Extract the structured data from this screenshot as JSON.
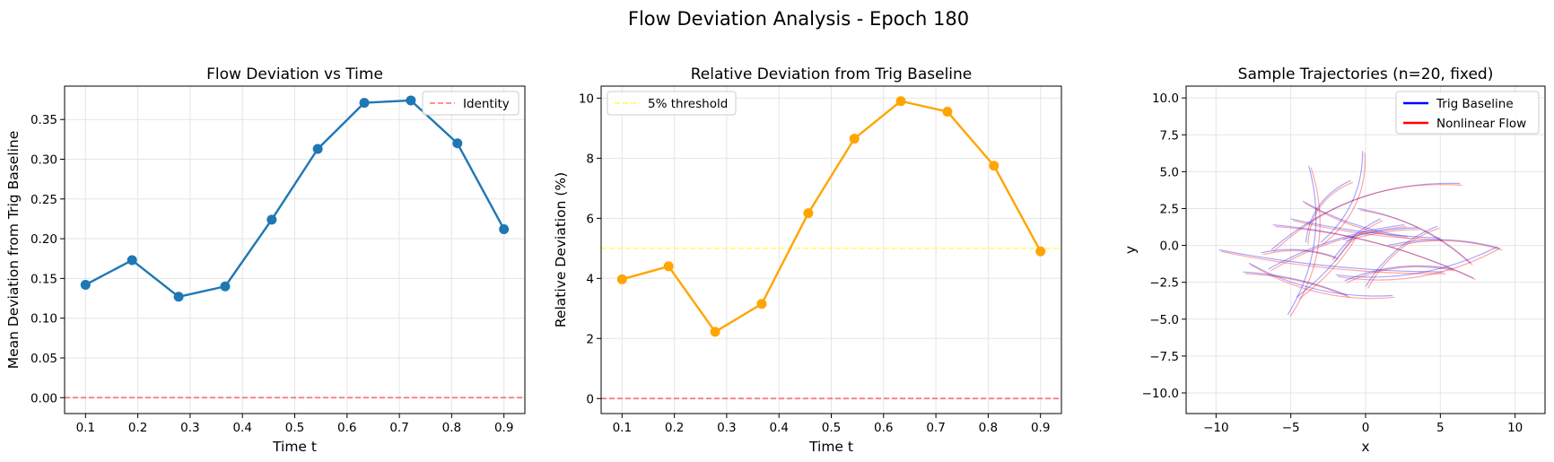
{
  "figure": {
    "suptitle": "Flow Deviation Analysis - Epoch 180"
  },
  "colors": {
    "blue": "#1f77b4",
    "orange": "#ffa500",
    "red": "#ff0000",
    "yellow": "#ffff00",
    "traj_blue": "#0000ff",
    "traj_red": "#ff0000",
    "grid": "#e5e5e5"
  },
  "chart_data": [
    {
      "type": "line",
      "title": "Flow Deviation vs Time",
      "xlabel": "Time t",
      "ylabel": "Mean Deviation from Trig Baseline",
      "xlim": [
        0.06,
        0.94
      ],
      "ylim": [
        -0.02,
        0.392
      ],
      "xticks": [
        0.1,
        0.2,
        0.3,
        0.4,
        0.5,
        0.6,
        0.7,
        0.8,
        0.9
      ],
      "yticks": [
        0.0,
        0.05,
        0.1,
        0.15,
        0.2,
        0.25,
        0.3,
        0.35
      ],
      "ytick_labels": [
        "0.00",
        "0.05",
        "0.10",
        "0.15",
        "0.20",
        "0.25",
        "0.30",
        "0.35"
      ],
      "grid": true,
      "legend_position": "upper right",
      "x": [
        0.1,
        0.189,
        0.278,
        0.367,
        0.456,
        0.544,
        0.633,
        0.722,
        0.811,
        0.9
      ],
      "series": [
        {
          "values": [
            0.142,
            0.173,
            0.127,
            0.14,
            0.224,
            0.313,
            0.371,
            0.374,
            0.32,
            0.212
          ],
          "color": "#1f77b4",
          "style": "solid",
          "marker": true
        }
      ],
      "reference_lines": [
        {
          "name": "Identity",
          "y": 0,
          "color": "#ff0000",
          "style": "dashed",
          "in_legend": true
        }
      ]
    },
    {
      "type": "line",
      "title": "Relative Deviation from Trig Baseline",
      "xlabel": "Time t",
      "ylabel": "Relative Deviation (%)",
      "xlim": [
        0.06,
        0.94
      ],
      "ylim": [
        -0.5,
        10.4
      ],
      "xticks": [
        0.1,
        0.2,
        0.3,
        0.4,
        0.5,
        0.6,
        0.7,
        0.8,
        0.9
      ],
      "yticks": [
        0,
        2,
        4,
        6,
        8,
        10
      ],
      "ytick_labels": [
        "0",
        "2",
        "4",
        "6",
        "8",
        "10"
      ],
      "grid": true,
      "legend_position": "upper left",
      "x": [
        0.1,
        0.189,
        0.278,
        0.367,
        0.456,
        0.544,
        0.633,
        0.722,
        0.811,
        0.9
      ],
      "series": [
        {
          "values": [
            3.97,
            4.4,
            2.22,
            3.15,
            6.17,
            8.65,
            9.9,
            9.55,
            7.75,
            4.9
          ],
          "color": "#ffa500",
          "style": "solid",
          "marker": true
        }
      ],
      "reference_lines": [
        {
          "name": "5% threshold",
          "y": 5,
          "color": "#ffff00",
          "style": "dashed",
          "in_legend": true
        },
        {
          "y": 0,
          "color": "#ff0000",
          "style": "dashed",
          "in_legend": false
        }
      ]
    },
    {
      "type": "line",
      "title": "Sample Trajectories (n=20, fixed)",
      "xlabel": "x",
      "ylabel": "y",
      "xlim": [
        -12,
        12
      ],
      "ylim": [
        -11.4,
        10.8
      ],
      "xticks": [
        -10,
        -5,
        0,
        5,
        10
      ],
      "xtick_labels": [
        "−10",
        "−5",
        "0",
        "5",
        "10"
      ],
      "yticks": [
        -10,
        -7.5,
        -5,
        -2.5,
        0,
        2.5,
        5,
        7.5,
        10
      ],
      "ytick_labels": [
        "−10.0",
        "−7.5",
        "−5.0",
        "−2.5",
        "0.0",
        "2.5",
        "5.0",
        "7.5",
        "10.0"
      ],
      "grid": true,
      "legend_position": "upper right",
      "legend": [
        {
          "name": "Trig Baseline",
          "color": "#0000ff"
        },
        {
          "name": "Nonlinear Flow",
          "color": "#ff0000"
        }
      ],
      "trajectories": [
        {
          "start": [
            -9.8,
            -0.3
          ],
          "end": [
            5.2,
            -1.8
          ],
          "bend": -0.6
        },
        {
          "start": [
            -6.3,
            -0.3
          ],
          "end": [
            6.3,
            4.2
          ],
          "bend": 2.2
        },
        {
          "start": [
            -5.2,
            -4.7
          ],
          "end": [
            -3.8,
            5.4
          ],
          "bend": -1.8
        },
        {
          "start": [
            -4.0,
            0.2
          ],
          "end": [
            -1.0,
            4.4
          ],
          "bend": 1.2
        },
        {
          "start": [
            -3.0,
            0.2
          ],
          "end": [
            -0.2,
            6.4
          ],
          "bend": -1.3
        },
        {
          "start": [
            -7.0,
            -0.5
          ],
          "end": [
            -2.0,
            -0.8
          ],
          "bend": 0.6
        },
        {
          "start": [
            -6.2,
            1.4
          ],
          "end": [
            7.2,
            -2.2
          ],
          "bend": 1.0
        },
        {
          "start": [
            -7.8,
            -1.2
          ],
          "end": [
            1.8,
            -3.4
          ],
          "bend": -1.2
        },
        {
          "start": [
            -5.0,
            1.8
          ],
          "end": [
            5.0,
            0.5
          ],
          "bend": -0.4
        },
        {
          "start": [
            -2.0,
            -2.0
          ],
          "end": [
            8.8,
            -0.1
          ],
          "bend": -1.4
        },
        {
          "start": [
            1.5,
            0.0
          ],
          "end": [
            9.0,
            -0.2
          ],
          "bend": 0.8
        },
        {
          "start": [
            -0.5,
            2.5
          ],
          "end": [
            7.0,
            -1.2
          ],
          "bend": 1.0
        },
        {
          "start": [
            -6.5,
            -1.6
          ],
          "end": [
            2.6,
            1.4
          ],
          "bend": 0.8
        },
        {
          "start": [
            -4.2,
            3.0
          ],
          "end": [
            2.8,
            0.6
          ],
          "bend": -0.6
        },
        {
          "start": [
            -1.5,
            0.4
          ],
          "end": [
            3.5,
            1.2
          ],
          "bend": 0.3
        },
        {
          "start": [
            -8.2,
            -1.8
          ],
          "end": [
            -1.2,
            -3.4
          ],
          "bend": 0.5
        },
        {
          "start": [
            -4.6,
            -3.5
          ],
          "end": [
            -0.8,
            0.6
          ],
          "bend": -0.4
        },
        {
          "start": [
            0.0,
            -2.8
          ],
          "end": [
            4.8,
            1.3
          ],
          "bend": 0.9
        },
        {
          "start": [
            -2.2,
            -1.0
          ],
          "end": [
            1.0,
            1.8
          ],
          "bend": 0.5
        },
        {
          "start": [
            -1.4,
            -2.4
          ],
          "end": [
            5.8,
            -1.6
          ],
          "bend": 0.9
        }
      ]
    }
  ]
}
